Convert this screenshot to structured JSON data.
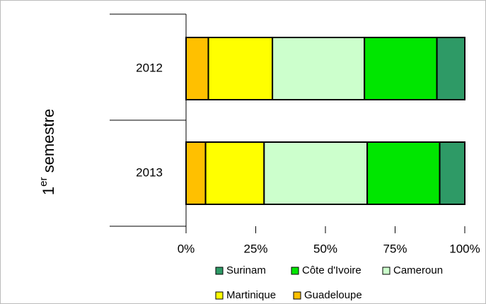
{
  "chart_data": {
    "type": "stacked-bar-horizontal",
    "ylabel": [
      "1",
      "er",
      " semestre"
    ],
    "categories": [
      "2012",
      "2013"
    ],
    "series": [
      {
        "name": "Guadeloupe",
        "color": "#ffc000",
        "values": [
          8,
          7
        ]
      },
      {
        "name": "Martinique",
        "color": "#ffff00",
        "values": [
          23,
          21
        ]
      },
      {
        "name": "Cameroun",
        "color": "#ccffcc",
        "values": [
          33,
          37
        ]
      },
      {
        "name": "Côte d'Ivoire",
        "color": "#00e600",
        "values": [
          26,
          26
        ]
      },
      {
        "name": "Surinam",
        "color": "#2e9a66",
        "values": [
          10,
          9
        ]
      }
    ],
    "xlim": [
      0,
      100
    ],
    "xticks": [
      {
        "value": 0,
        "label": "0%"
      },
      {
        "value": 25,
        "label": "25%"
      },
      {
        "value": 50,
        "label": "50%"
      },
      {
        "value": 75,
        "label": "75%"
      },
      {
        "value": 100,
        "label": "100%"
      }
    ]
  }
}
